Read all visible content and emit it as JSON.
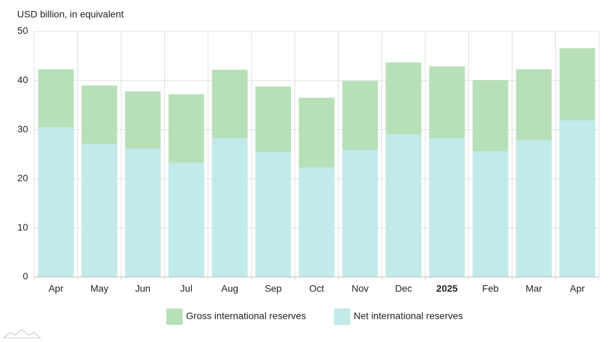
{
  "chart_data": {
    "type": "bar",
    "barmode": "overlay",
    "ylabel": "USD billion, in equivalent",
    "categories": [
      "Apr",
      "May",
      "Jun",
      "Jul",
      "Aug",
      "Sep",
      "Oct",
      "Nov",
      "Dec",
      "2025",
      "Feb",
      "Mar",
      "Apr"
    ],
    "series": [
      {
        "name": "Gross international reserves",
        "color": "#b8e0b8",
        "values": [
          42.3,
          39.0,
          37.8,
          37.2,
          42.2,
          38.8,
          36.5,
          39.9,
          43.7,
          42.9,
          40.1,
          42.3,
          46.6
        ]
      },
      {
        "name": "Net international reserves",
        "color": "#c2eaea",
        "values": [
          30.5,
          27.1,
          26.2,
          23.3,
          28.3,
          25.5,
          22.3,
          25.9,
          29.1,
          28.3,
          25.6,
          27.9,
          31.9
        ]
      }
    ],
    "ylim": [
      0,
      50
    ],
    "yticks": [
      0,
      10,
      20,
      30,
      40,
      50
    ],
    "grid": true,
    "legend": "bottom"
  }
}
